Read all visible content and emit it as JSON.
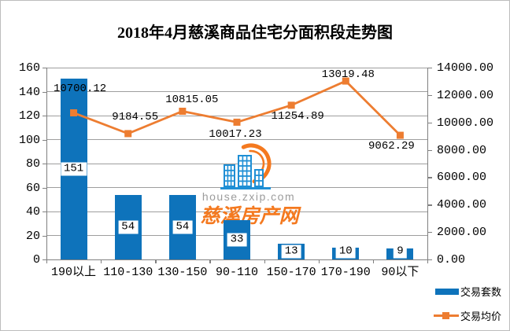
{
  "title": "2018年4月慈溪商品住宅分面积段走势图",
  "colors": {
    "bar": "#0e73bb",
    "line": "#ed7d31",
    "grid": "#9e9e9e",
    "axis": "#808080",
    "watermark_blue": "#1f8fd5",
    "watermark_orange": "#f4791f",
    "watermark_gray": "#9c9c9c"
  },
  "watermark": {
    "url": "house.zxip.com",
    "name": "慈溪房产网"
  },
  "chart_data": {
    "type": "bar",
    "subtype": "bar+line dual-axis",
    "title": "2018年4月慈溪商品住宅分面积段走势图",
    "categories": [
      "190以上",
      "110-130",
      "130-150",
      "90-110",
      "150-170",
      "170-190",
      "90以下"
    ],
    "series": [
      {
        "name": "交易套数",
        "type": "bar",
        "axis": "left",
        "values": [
          151,
          54,
          54,
          33,
          13,
          10,
          9
        ],
        "labels": [
          "151",
          "54",
          "54",
          "33",
          "13",
          "10",
          "9"
        ]
      },
      {
        "name": "交易均价",
        "type": "line",
        "axis": "right",
        "values": [
          10700.12,
          9184.55,
          10815.05,
          10017.23,
          11254.89,
          13019.48,
          9062.29
        ],
        "labels": [
          "10700.12",
          "9184.55",
          "10815.05",
          "10017.23",
          "11254.89",
          "13019.48",
          "9062.29"
        ]
      }
    ],
    "left_axis": {
      "min": 0,
      "max": 160,
      "step": 20,
      "ticks": [
        "0",
        "20",
        "40",
        "60",
        "80",
        "100",
        "120",
        "140",
        "160"
      ]
    },
    "right_axis": {
      "min": 0,
      "max": 14000,
      "step": 2000,
      "ticks": [
        "0.00",
        "2000.00",
        "4000.00",
        "6000.00",
        "8000.00",
        "10000.00",
        "12000.00",
        "14000.00"
      ]
    },
    "grid": true,
    "legend_position": "bottom-right"
  }
}
